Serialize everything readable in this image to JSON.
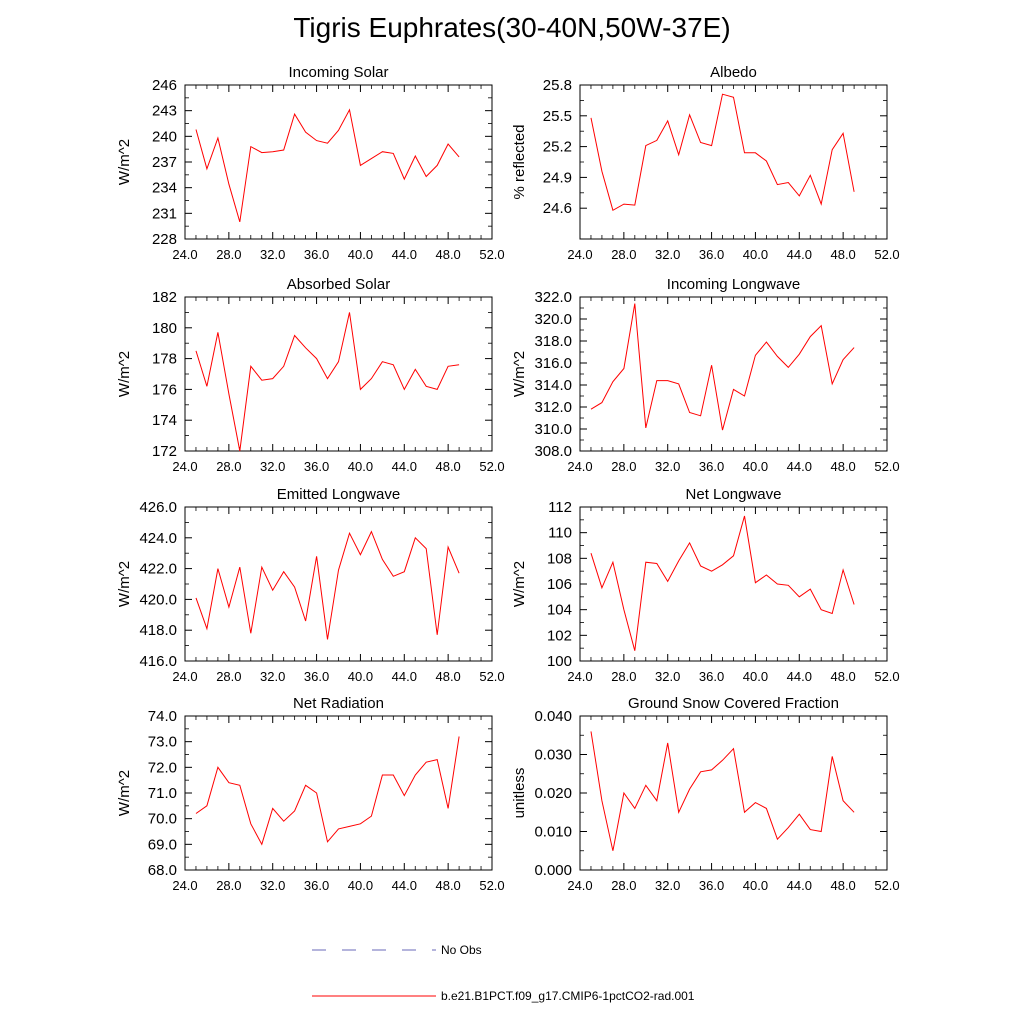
{
  "title": "Tigris Euphrates(30-40N,50W-37E)",
  "colors": {
    "model": "#ff0000",
    "obs": "#6a6ab8",
    "axis": "#000000"
  },
  "legend": {
    "obs_label": "No Obs",
    "model_label": "b.e21.B1PCT.f09_g17.CMIP6-1pctCO2-rad.001"
  },
  "chart_data": [
    {
      "type": "line",
      "title": "Incoming Solar",
      "ylabel": "W/m^2",
      "xlim": [
        24,
        52
      ],
      "xticks": [
        24,
        28,
        32,
        36,
        40,
        44,
        48,
        52
      ],
      "xdecimals": 1,
      "ylim": [
        228,
        246
      ],
      "yticks": [
        228,
        231,
        234,
        237,
        240,
        243,
        246
      ],
      "ydecimals": 0,
      "yminor": 2,
      "series": [
        {
          "x": [
            25,
            26,
            27,
            28,
            29,
            30,
            31,
            32,
            33,
            34,
            35,
            36,
            37,
            38,
            39,
            40,
            41,
            42,
            43,
            44,
            45,
            46,
            47,
            48,
            49
          ],
          "values": [
            240.8,
            236.2,
            239.8,
            234.4,
            230.0,
            238.8,
            238.1,
            238.2,
            238.4,
            242.6,
            240.5,
            239.5,
            239.2,
            240.7,
            243.1,
            236.6,
            237.4,
            238.2,
            238.0,
            235.0,
            237.7,
            235.3,
            236.6,
            239.1,
            237.6
          ]
        }
      ]
    },
    {
      "type": "line",
      "title": "Albedo",
      "ylabel": "% reflected",
      "xlim": [
        24,
        52
      ],
      "xticks": [
        24,
        28,
        32,
        36,
        40,
        44,
        48,
        52
      ],
      "xdecimals": 1,
      "ylim": [
        24.3,
        25.8
      ],
      "yticks": [
        24.6,
        24.9,
        25.2,
        25.5,
        25.8
      ],
      "ydecimals": 1,
      "yminor": 2,
      "series": [
        {
          "x": [
            25,
            26,
            27,
            28,
            29,
            30,
            31,
            32,
            33,
            34,
            35,
            36,
            37,
            38,
            39,
            40,
            41,
            42,
            43,
            44,
            45,
            46,
            47,
            48,
            49
          ],
          "values": [
            25.48,
            24.96,
            24.58,
            24.64,
            24.63,
            25.21,
            25.26,
            25.45,
            25.12,
            25.51,
            25.24,
            25.21,
            25.71,
            25.68,
            25.14,
            25.14,
            25.06,
            24.83,
            24.85,
            24.72,
            24.92,
            24.64,
            25.17,
            25.33,
            24.76
          ]
        }
      ]
    },
    {
      "type": "line",
      "title": "Absorbed Solar",
      "ylabel": "W/m^2",
      "xlim": [
        24,
        52
      ],
      "xticks": [
        24,
        28,
        32,
        36,
        40,
        44,
        48,
        52
      ],
      "xdecimals": 1,
      "ylim": [
        172,
        182
      ],
      "yticks": [
        172,
        174,
        176,
        178,
        180,
        182
      ],
      "ydecimals": 0,
      "yminor": 2,
      "series": [
        {
          "x": [
            25,
            26,
            27,
            28,
            29,
            30,
            31,
            32,
            33,
            34,
            35,
            36,
            37,
            38,
            39,
            40,
            41,
            42,
            43,
            44,
            45,
            46,
            47,
            48,
            49
          ],
          "values": [
            178.5,
            176.2,
            179.7,
            175.7,
            172.0,
            177.5,
            176.6,
            176.7,
            177.5,
            179.5,
            178.7,
            178.0,
            176.7,
            177.8,
            181.0,
            176.0,
            176.7,
            177.8,
            177.6,
            176.0,
            177.3,
            176.2,
            176.0,
            177.5,
            177.6
          ]
        }
      ]
    },
    {
      "type": "line",
      "title": "Incoming Longwave",
      "ylabel": "W/m^2",
      "xlim": [
        24,
        52
      ],
      "xticks": [
        24,
        28,
        32,
        36,
        40,
        44,
        48,
        52
      ],
      "xdecimals": 1,
      "ylim": [
        308,
        322
      ],
      "yticks": [
        308,
        310,
        312,
        314,
        316,
        318,
        320,
        322
      ],
      "ydecimals": 1,
      "yminor": 2,
      "series": [
        {
          "x": [
            25,
            26,
            27,
            28,
            29,
            30,
            31,
            32,
            33,
            34,
            35,
            36,
            37,
            38,
            39,
            40,
            41,
            42,
            43,
            44,
            45,
            46,
            47,
            48,
            49
          ],
          "values": [
            311.8,
            312.4,
            314.3,
            315.5,
            321.4,
            310.1,
            314.4,
            314.4,
            314.1,
            311.5,
            311.2,
            315.8,
            309.9,
            313.6,
            313.0,
            316.7,
            317.9,
            316.6,
            315.6,
            316.8,
            318.4,
            319.4,
            314.1,
            316.3,
            317.4
          ]
        }
      ]
    },
    {
      "type": "line",
      "title": "Emitted Longwave",
      "ylabel": "W/m^2",
      "xlim": [
        24,
        52
      ],
      "xticks": [
        24,
        28,
        32,
        36,
        40,
        44,
        48,
        52
      ],
      "xdecimals": 1,
      "ylim": [
        416,
        426
      ],
      "yticks": [
        416,
        418,
        420,
        422,
        424,
        426
      ],
      "ydecimals": 1,
      "yminor": 2,
      "series": [
        {
          "x": [
            25,
            26,
            27,
            28,
            29,
            30,
            31,
            32,
            33,
            34,
            35,
            36,
            37,
            38,
            39,
            40,
            41,
            42,
            43,
            44,
            45,
            46,
            47,
            48,
            49
          ],
          "values": [
            420.1,
            418.1,
            422.0,
            419.5,
            422.1,
            417.8,
            422.1,
            420.6,
            421.8,
            420.8,
            418.6,
            422.8,
            417.4,
            421.9,
            424.3,
            422.9,
            424.4,
            422.6,
            421.5,
            421.8,
            424.0,
            423.3,
            417.7,
            423.4,
            421.7
          ]
        }
      ]
    },
    {
      "type": "line",
      "title": "Net Longwave",
      "ylabel": "W/m^2",
      "xlim": [
        24,
        52
      ],
      "xticks": [
        24,
        28,
        32,
        36,
        40,
        44,
        48,
        52
      ],
      "xdecimals": 1,
      "ylim": [
        100,
        112
      ],
      "yticks": [
        100,
        102,
        104,
        106,
        108,
        110,
        112
      ],
      "ydecimals": 0,
      "yminor": 2,
      "series": [
        {
          "x": [
            25,
            26,
            27,
            28,
            29,
            30,
            31,
            32,
            33,
            34,
            35,
            36,
            37,
            38,
            39,
            40,
            41,
            42,
            43,
            44,
            45,
            46,
            47,
            48,
            49
          ],
          "values": [
            108.4,
            105.7,
            107.7,
            104.0,
            100.8,
            107.7,
            107.6,
            106.2,
            107.8,
            109.2,
            107.4,
            107.0,
            107.5,
            108.2,
            111.3,
            106.1,
            106.7,
            106.0,
            105.9,
            105.0,
            105.6,
            104.0,
            103.7,
            107.1,
            104.4
          ]
        }
      ]
    },
    {
      "type": "line",
      "title": "Net Radiation",
      "ylabel": "W/m^2",
      "xlim": [
        24,
        52
      ],
      "xticks": [
        24,
        28,
        32,
        36,
        40,
        44,
        48,
        52
      ],
      "xdecimals": 1,
      "ylim": [
        68,
        74
      ],
      "yticks": [
        68,
        69,
        70,
        71,
        72,
        73,
        74
      ],
      "ydecimals": 1,
      "yminor": 2,
      "series": [
        {
          "x": [
            25,
            26,
            27,
            28,
            29,
            30,
            31,
            32,
            33,
            34,
            35,
            36,
            37,
            38,
            39,
            40,
            41,
            42,
            43,
            44,
            45,
            46,
            47,
            48,
            49
          ],
          "values": [
            70.2,
            70.5,
            72.0,
            71.4,
            71.3,
            69.8,
            69.0,
            70.4,
            69.9,
            70.3,
            71.3,
            71.0,
            69.1,
            69.6,
            69.7,
            69.8,
            70.1,
            71.7,
            71.7,
            70.9,
            71.7,
            72.2,
            72.3,
            70.4,
            73.2
          ]
        }
      ]
    },
    {
      "type": "line",
      "title": "Ground Snow Covered Fraction",
      "ylabel": "unitless",
      "xlim": [
        24,
        52
      ],
      "xticks": [
        24,
        28,
        32,
        36,
        40,
        44,
        48,
        52
      ],
      "xdecimals": 1,
      "ylim": [
        0,
        0.04
      ],
      "yticks": [
        0,
        0.01,
        0.02,
        0.03,
        0.04
      ],
      "ydecimals": 3,
      "yminor": 2,
      "series": [
        {
          "x": [
            25,
            26,
            27,
            28,
            29,
            30,
            31,
            32,
            33,
            34,
            35,
            36,
            37,
            38,
            39,
            40,
            41,
            42,
            43,
            44,
            45,
            46,
            47,
            48,
            49
          ],
          "values": [
            0.036,
            0.018,
            0.005,
            0.02,
            0.016,
            0.022,
            0.018,
            0.033,
            0.015,
            0.021,
            0.0255,
            0.026,
            0.0285,
            0.0315,
            0.015,
            0.0175,
            0.016,
            0.008,
            0.011,
            0.0145,
            0.0105,
            0.01,
            0.0295,
            0.018,
            0.015
          ]
        }
      ]
    }
  ]
}
